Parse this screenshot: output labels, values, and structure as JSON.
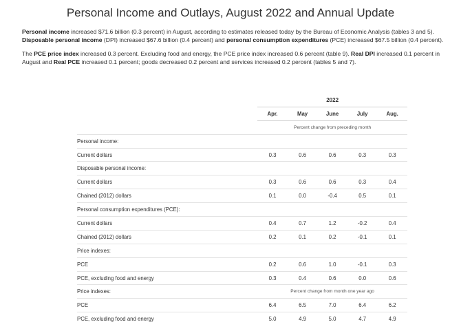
{
  "page": {
    "title": "Personal Income and Outlays, August 2022 and Annual Update"
  },
  "p1": {
    "b1": "Personal income",
    "t1": " increased $71.6 billion (0.3 percent) in August, according to estimates released today by the Bureau of Economic Analysis (tables 3 and 5). ",
    "b2": "Disposable personal income",
    "t2": " (DPI) increased $67.6 billion (0.4 percent) and ",
    "b3": "personal consumption expenditures",
    "t3": " (PCE) increased $67.5 billion (0.4 percent)."
  },
  "p2": {
    "t0": "The ",
    "b1": "PCE price index",
    "t1": " increased 0.3 percent. Excluding food and energy, the PCE price index increased 0.6 percent (table 9). ",
    "b2": "Real DPI",
    "t2": " increased 0.1 percent in August and ",
    "b3": "Real PCE",
    "t3": " increased 0.1 percent; goods decreased 0.2 percent and services increased 0.2 percent (tables 5 and 7)."
  },
  "table": {
    "year": "2022",
    "months": [
      "Apr.",
      "May",
      "June",
      "July",
      "Aug."
    ],
    "subheader1": "Percent change from preceding month",
    "subheader2": "Percent change from month one year ago",
    "s1": {
      "label": "Personal income:",
      "r1": {
        "label": "Current dollars",
        "values": [
          "0.3",
          "0.6",
          "0.6",
          "0.3",
          "0.3"
        ]
      }
    },
    "s2": {
      "label": "Disposable personal income:",
      "r1": {
        "label": "Current dollars",
        "values": [
          "0.3",
          "0.6",
          "0.6",
          "0.3",
          "0.4"
        ]
      },
      "r2": {
        "label": "Chained (2012) dollars",
        "values": [
          "0.1",
          "0.0",
          "-0.4",
          "0.5",
          "0.1"
        ]
      }
    },
    "s3": {
      "label": "Personal consumption expenditures (PCE):",
      "r1": {
        "label": "Current dollars",
        "values": [
          "0.4",
          "0.7",
          "1.2",
          "-0.2",
          "0.4"
        ]
      },
      "r2": {
        "label": "Chained (2012) dollars",
        "values": [
          "0.2",
          "0.1",
          "0.2",
          "-0.1",
          "0.1"
        ]
      }
    },
    "s4": {
      "label": "Price indexes:",
      "r1": {
        "label": "PCE",
        "values": [
          "0.2",
          "0.6",
          "1.0",
          "-0.1",
          "0.3"
        ]
      },
      "r2": {
        "label": "PCE, excluding food and energy",
        "values": [
          "0.3",
          "0.4",
          "0.6",
          "0.0",
          "0.6"
        ]
      }
    },
    "s5": {
      "label": "Price indexes:",
      "r1": {
        "label": "PCE",
        "values": [
          "6.4",
          "6.5",
          "7.0",
          "6.4",
          "6.2"
        ]
      },
      "r2": {
        "label": "PCE, excluding food and energy",
        "values": [
          "5.0",
          "4.9",
          "5.0",
          "4.7",
          "4.9"
        ]
      }
    }
  }
}
